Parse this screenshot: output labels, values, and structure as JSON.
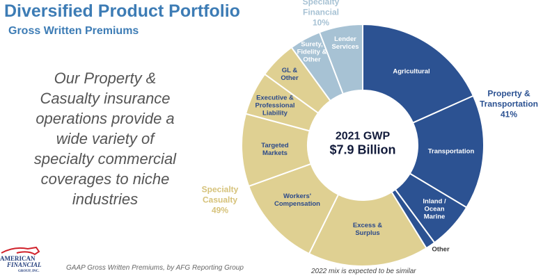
{
  "header": {
    "title": "Diversified Product Portfolio",
    "subtitle": "Gross Written Premiums"
  },
  "blurb": "Our Property & Casualty insurance operations provide a wide variety of specialty commercial coverages to niche industries",
  "footnote": "GAAP Gross Written Premiums, by AFG Reporting Group",
  "mix_note": "2022 mix is expected to be similar",
  "logo": {
    "line1": "AMERICAN",
    "line2": "FINANCIAL",
    "line3": "GROUP, INC."
  },
  "colors": {
    "property_transportation": "#2c5292",
    "specialty_casualty": "#dfd092",
    "specialty_financial": "#a7c2d4",
    "title": "#3d7cb5"
  },
  "chart_data": {
    "type": "pie",
    "style": "donut",
    "center_label": {
      "line1": "2021 GWP",
      "line2": "$7.9 Billion"
    },
    "groups": [
      {
        "name": "Property & Transportation",
        "percent_label": "41%",
        "value": 41
      },
      {
        "name": "Specialty Casualty",
        "percent_label": "49%",
        "value": 49
      },
      {
        "name": "Specialty Financial",
        "percent_label": "10%",
        "value": 10
      }
    ],
    "slices": [
      {
        "label": "Agricultural",
        "group": "Property & Transportation",
        "value": 18.3
      },
      {
        "label": "Transportation",
        "group": "Property & Transportation",
        "value": 15.3
      },
      {
        "label": "Inland / Ocean Marine",
        "group": "Property & Transportation",
        "value": 6.3
      },
      {
        "label": "Other",
        "group": "Property & Transportation",
        "value": 1.3
      },
      {
        "label": "Excess & Surplus",
        "group": "Specialty Casualty",
        "value": 16.1
      },
      {
        "label": "Workers' Compensation",
        "group": "Specialty Casualty",
        "value": 12.2
      },
      {
        "label": "Targeted Markets",
        "group": "Specialty Casualty",
        "value": 9.7
      },
      {
        "label": "Executive & Professional Liability",
        "group": "Specialty Casualty",
        "value": 5.8
      },
      {
        "label": "GL & Other",
        "group": "Specialty Casualty",
        "value": 5.0
      },
      {
        "label": "Surety, Fidelity & Other",
        "group": "Specialty Financial",
        "value": 4.2
      },
      {
        "label": "Lender Services",
        "group": "Specialty Financial",
        "value": 5.8
      }
    ]
  }
}
